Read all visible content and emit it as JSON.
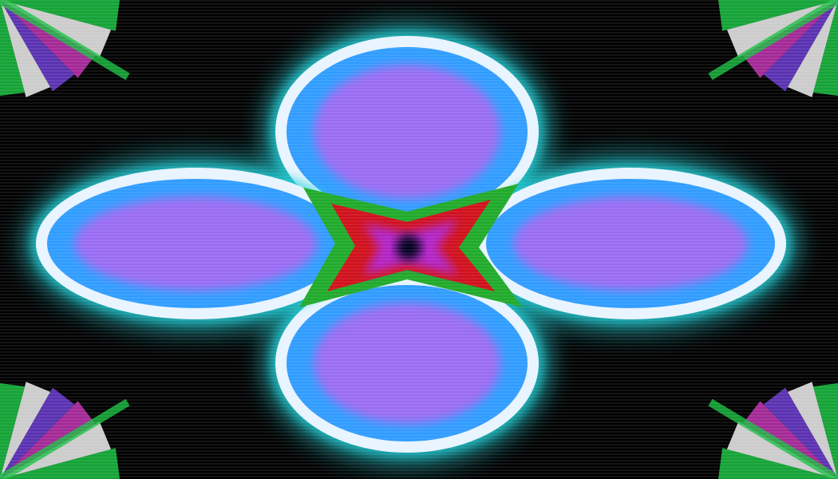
{
  "scene": {
    "subject": "kaleidoscope-flower",
    "petal_count": 4,
    "corner_ornament_count": 4,
    "colors": {
      "background": "#000000",
      "petal_outer": "#2f9cff",
      "petal_rim": "#e8f4ff",
      "petal_inner": "#9a6cf2",
      "petal_halo": "#1fd0d8",
      "center_red": "#d0101a",
      "center_green": "#1faa2a",
      "center_magenta": "#b020c8",
      "center_dark": "#05021a",
      "corner_green": "#18c040",
      "corner_magenta": "#c030b0",
      "corner_white": "#f0f0f0",
      "corner_purple": "#6a3ad0"
    }
  }
}
